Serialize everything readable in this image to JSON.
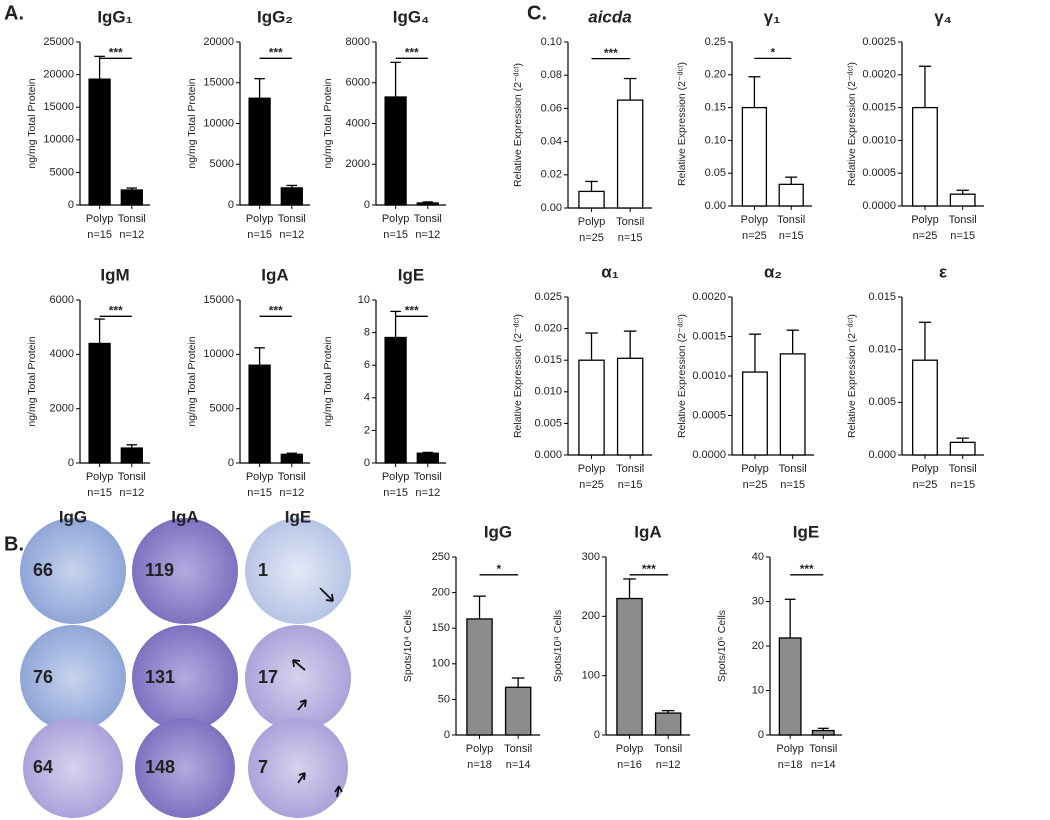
{
  "panel_labels": [
    "A.",
    "B.",
    "C."
  ],
  "elispot": {
    "columns": [
      "IgG",
      "IgA",
      "IgE"
    ],
    "counts": [
      [
        66,
        119,
        1
      ],
      [
        76,
        131,
        17
      ],
      [
        64,
        148,
        7
      ]
    ]
  },
  "chart_data": [
    {
      "type": "bar",
      "title": "IgG₁",
      "ylabel": "ng/mg Total Protein",
      "color": "#000000",
      "categories": [
        "Polyp",
        "Tonsil"
      ],
      "n_labels": [
        "n=15",
        "n=12"
      ],
      "values": [
        19300,
        2300
      ],
      "errors": [
        3500,
        300
      ],
      "significance": "***",
      "ylim": [
        0,
        25000
      ],
      "yticks": [
        0,
        5000,
        10000,
        15000,
        20000,
        25000
      ]
    },
    {
      "type": "bar",
      "title": "IgG₂",
      "ylabel": "ng/mg Total Protein",
      "color": "#000000",
      "categories": [
        "Polyp",
        "Tonsil"
      ],
      "n_labels": [
        "n=15",
        "n=12"
      ],
      "values": [
        13100,
        2100
      ],
      "errors": [
        2400,
        300
      ],
      "significance": "***",
      "ylim": [
        0,
        20000
      ],
      "yticks": [
        0,
        5000,
        10000,
        15000,
        20000
      ]
    },
    {
      "type": "bar",
      "title": "IgG₄",
      "ylabel": "ng/mg Total Protein",
      "color": "#000000",
      "categories": [
        "Polyp",
        "Tonsil"
      ],
      "n_labels": [
        "n=15",
        "n=12"
      ],
      "values": [
        5300,
        100
      ],
      "errors": [
        1700,
        50
      ],
      "significance": "***",
      "ylim": [
        0,
        8000
      ],
      "yticks": [
        0,
        2000,
        4000,
        6000,
        8000
      ]
    },
    {
      "type": "bar",
      "title": "IgM",
      "ylabel": "ng/mg Total Protein",
      "color": "#000000",
      "categories": [
        "Polyp",
        "Tonsil"
      ],
      "n_labels": [
        "n=15",
        "n=12"
      ],
      "values": [
        4400,
        550
      ],
      "errors": [
        900,
        120
      ],
      "significance": "***",
      "ylim": [
        0,
        6000
      ],
      "yticks": [
        0,
        2000,
        4000,
        6000
      ]
    },
    {
      "type": "bar",
      "title": "IgA",
      "ylabel": "ng/mg Total Protein",
      "color": "#000000",
      "categories": [
        "Polyp",
        "Tonsil"
      ],
      "n_labels": [
        "n=15",
        "n=12"
      ],
      "values": [
        9000,
        800
      ],
      "errors": [
        1600,
        100
      ],
      "significance": "***",
      "ylim": [
        0,
        15000
      ],
      "yticks": [
        0,
        5000,
        10000,
        15000
      ]
    },
    {
      "type": "bar",
      "title": "IgE",
      "ylabel": "ng/mg Total Protein",
      "color": "#000000",
      "categories": [
        "Polyp",
        "Tonsil"
      ],
      "n_labels": [
        "n=15",
        "n=12"
      ],
      "values": [
        7.7,
        0.6
      ],
      "errors": [
        1.6,
        0.05
      ],
      "significance": "***",
      "ylim": [
        0,
        10
      ],
      "yticks": [
        0,
        2,
        4,
        6,
        8,
        10
      ]
    },
    {
      "type": "bar",
      "title": "aicda",
      "title_style": "italic",
      "ylabel": "Relative Expression (2⁻ᵈᶜᵗ)",
      "color": "#ffffff",
      "categories": [
        "Polyp",
        "Tonsil"
      ],
      "n_labels": [
        "n=25",
        "n=15"
      ],
      "values": [
        0.01,
        0.065
      ],
      "errors": [
        0.006,
        0.013
      ],
      "significance": "***",
      "ylim": [
        0,
        0.1
      ],
      "yticks": [
        {
          "value": 0,
          "label": "0.00"
        },
        {
          "value": 0.02,
          "label": "0.02"
        },
        {
          "value": 0.04,
          "label": "0.04"
        },
        {
          "value": 0.06,
          "label": "0.06"
        },
        {
          "value": 0.08,
          "label": "0.08"
        },
        {
          "value": 0.1,
          "label": "0.10"
        }
      ]
    },
    {
      "type": "bar",
      "title": "γ₁",
      "ylabel": "Relative Expression (2⁻ᵈᶜᵗ)",
      "color": "#ffffff",
      "categories": [
        "Polyp",
        "Tonsil"
      ],
      "n_labels": [
        "n=25",
        "n=15"
      ],
      "values": [
        0.15,
        0.033
      ],
      "errors": [
        0.047,
        0.011
      ],
      "significance": "*",
      "ylim": [
        0,
        0.25
      ],
      "yticks": [
        {
          "value": 0,
          "label": "0.00"
        },
        {
          "value": 0.05,
          "label": "0.05"
        },
        {
          "value": 0.1,
          "label": "0.10"
        },
        {
          "value": 0.15,
          "label": "0.15"
        },
        {
          "value": 0.2,
          "label": "0.20"
        },
        {
          "value": 0.25,
          "label": "0.25"
        }
      ]
    },
    {
      "type": "bar",
      "title": "γ₄",
      "ylabel": "Relative Expression (2⁻ᵈᶜᵗ)",
      "color": "#ffffff",
      "categories": [
        "Polyp",
        "Tonsil"
      ],
      "n_labels": [
        "n=25",
        "n=15"
      ],
      "values": [
        0.0015,
        0.00018
      ],
      "errors": [
        0.00063,
        6e-05
      ],
      "ylim": [
        0,
        0.0025
      ],
      "yticks": [
        {
          "value": 0,
          "label": "0.0000"
        },
        {
          "value": 0.0005,
          "label": "0.0005"
        },
        {
          "value": 0.001,
          "label": "0.0010"
        },
        {
          "value": 0.0015,
          "label": "0.0015"
        },
        {
          "value": 0.002,
          "label": "0.0020"
        },
        {
          "value": 0.0025,
          "label": "0.0025"
        }
      ]
    },
    {
      "type": "bar",
      "title": "α₁",
      "ylabel": "Relative Expression (2⁻ᵈᶜᵗ)",
      "color": "#ffffff",
      "categories": [
        "Polyp",
        "Tonsil"
      ],
      "n_labels": [
        "n=25",
        "n=15"
      ],
      "values": [
        0.015,
        0.0153
      ],
      "errors": [
        0.0043,
        0.0043
      ],
      "ylim": [
        0,
        0.025
      ],
      "yticks": [
        {
          "value": 0,
          "label": "0.000"
        },
        {
          "value": 0.005,
          "label": "0.005"
        },
        {
          "value": 0.01,
          "label": "0.010"
        },
        {
          "value": 0.015,
          "label": "0.015"
        },
        {
          "value": 0.02,
          "label": "0.020"
        },
        {
          "value": 0.025,
          "label": "0.025"
        }
      ]
    },
    {
      "type": "bar",
      "title": "α₂",
      "ylabel": "Relative Expression (2⁻ᵈᶜᵗ)",
      "color": "#ffffff",
      "categories": [
        "Polyp",
        "Tonsil"
      ],
      "n_labels": [
        "n=25",
        "n=15"
      ],
      "values": [
        0.00105,
        0.00128
      ],
      "errors": [
        0.00048,
        0.0003
      ],
      "ylim": [
        0,
        0.002
      ],
      "yticks": [
        {
          "value": 0,
          "label": "0.0000"
        },
        {
          "value": 0.0005,
          "label": "0.0005"
        },
        {
          "value": 0.001,
          "label": "0.0010"
        },
        {
          "value": 0.0015,
          "label": "0.0015"
        },
        {
          "value": 0.002,
          "label": "0.0020"
        }
      ]
    },
    {
      "type": "bar",
      "title": "ε",
      "ylabel": "Relative Expression (2⁻ᵈᶜᵗ)",
      "color": "#ffffff",
      "categories": [
        "Polyp",
        "Tonsil"
      ],
      "n_labels": [
        "n=25",
        "n=15"
      ],
      "values": [
        0.009,
        0.0012
      ],
      "errors": [
        0.0036,
        0.0004
      ],
      "ylim": [
        0,
        0.015
      ],
      "yticks": [
        {
          "value": 0,
          "label": "0.000"
        },
        {
          "value": 0.005,
          "label": "0.005"
        },
        {
          "value": 0.01,
          "label": "0.010"
        },
        {
          "value": 0.015,
          "label": "0.015"
        }
      ]
    },
    {
      "type": "bar",
      "title": "IgG",
      "ylabel": "Spots/10⁴ Cells",
      "color": "#8c8c8c",
      "categories": [
        "Polyp",
        "Tonsil"
      ],
      "n_labels": [
        "n=18",
        "n=14"
      ],
      "values": [
        163,
        67
      ],
      "errors": [
        32,
        13
      ],
      "significance": "*",
      "ylim": [
        0,
        250
      ],
      "yticks": [
        0,
        50,
        100,
        150,
        200,
        250
      ]
    },
    {
      "type": "bar",
      "title": "IgA",
      "ylabel": "Spots/10⁴ Cells",
      "color": "#8c8c8c",
      "categories": [
        "Polyp",
        "Tonsil"
      ],
      "n_labels": [
        "n=16",
        "n=12"
      ],
      "values": [
        230,
        37
      ],
      "errors": [
        33,
        4
      ],
      "significance": "***",
      "ylim": [
        0,
        300
      ],
      "yticks": [
        0,
        100,
        200,
        300
      ]
    },
    {
      "type": "bar",
      "title": "IgE",
      "ylabel": "Spots/10⁵ Cells",
      "color": "#8c8c8c",
      "categories": [
        "Polyp",
        "Tonsil"
      ],
      "n_labels": [
        "n=18",
        "n=14"
      ],
      "values": [
        21.8,
        1.0
      ],
      "errors": [
        8.7,
        0.5
      ],
      "significance": "***",
      "ylim": [
        0,
        40
      ],
      "yticks": [
        0,
        10,
        20,
        30,
        40
      ]
    }
  ]
}
